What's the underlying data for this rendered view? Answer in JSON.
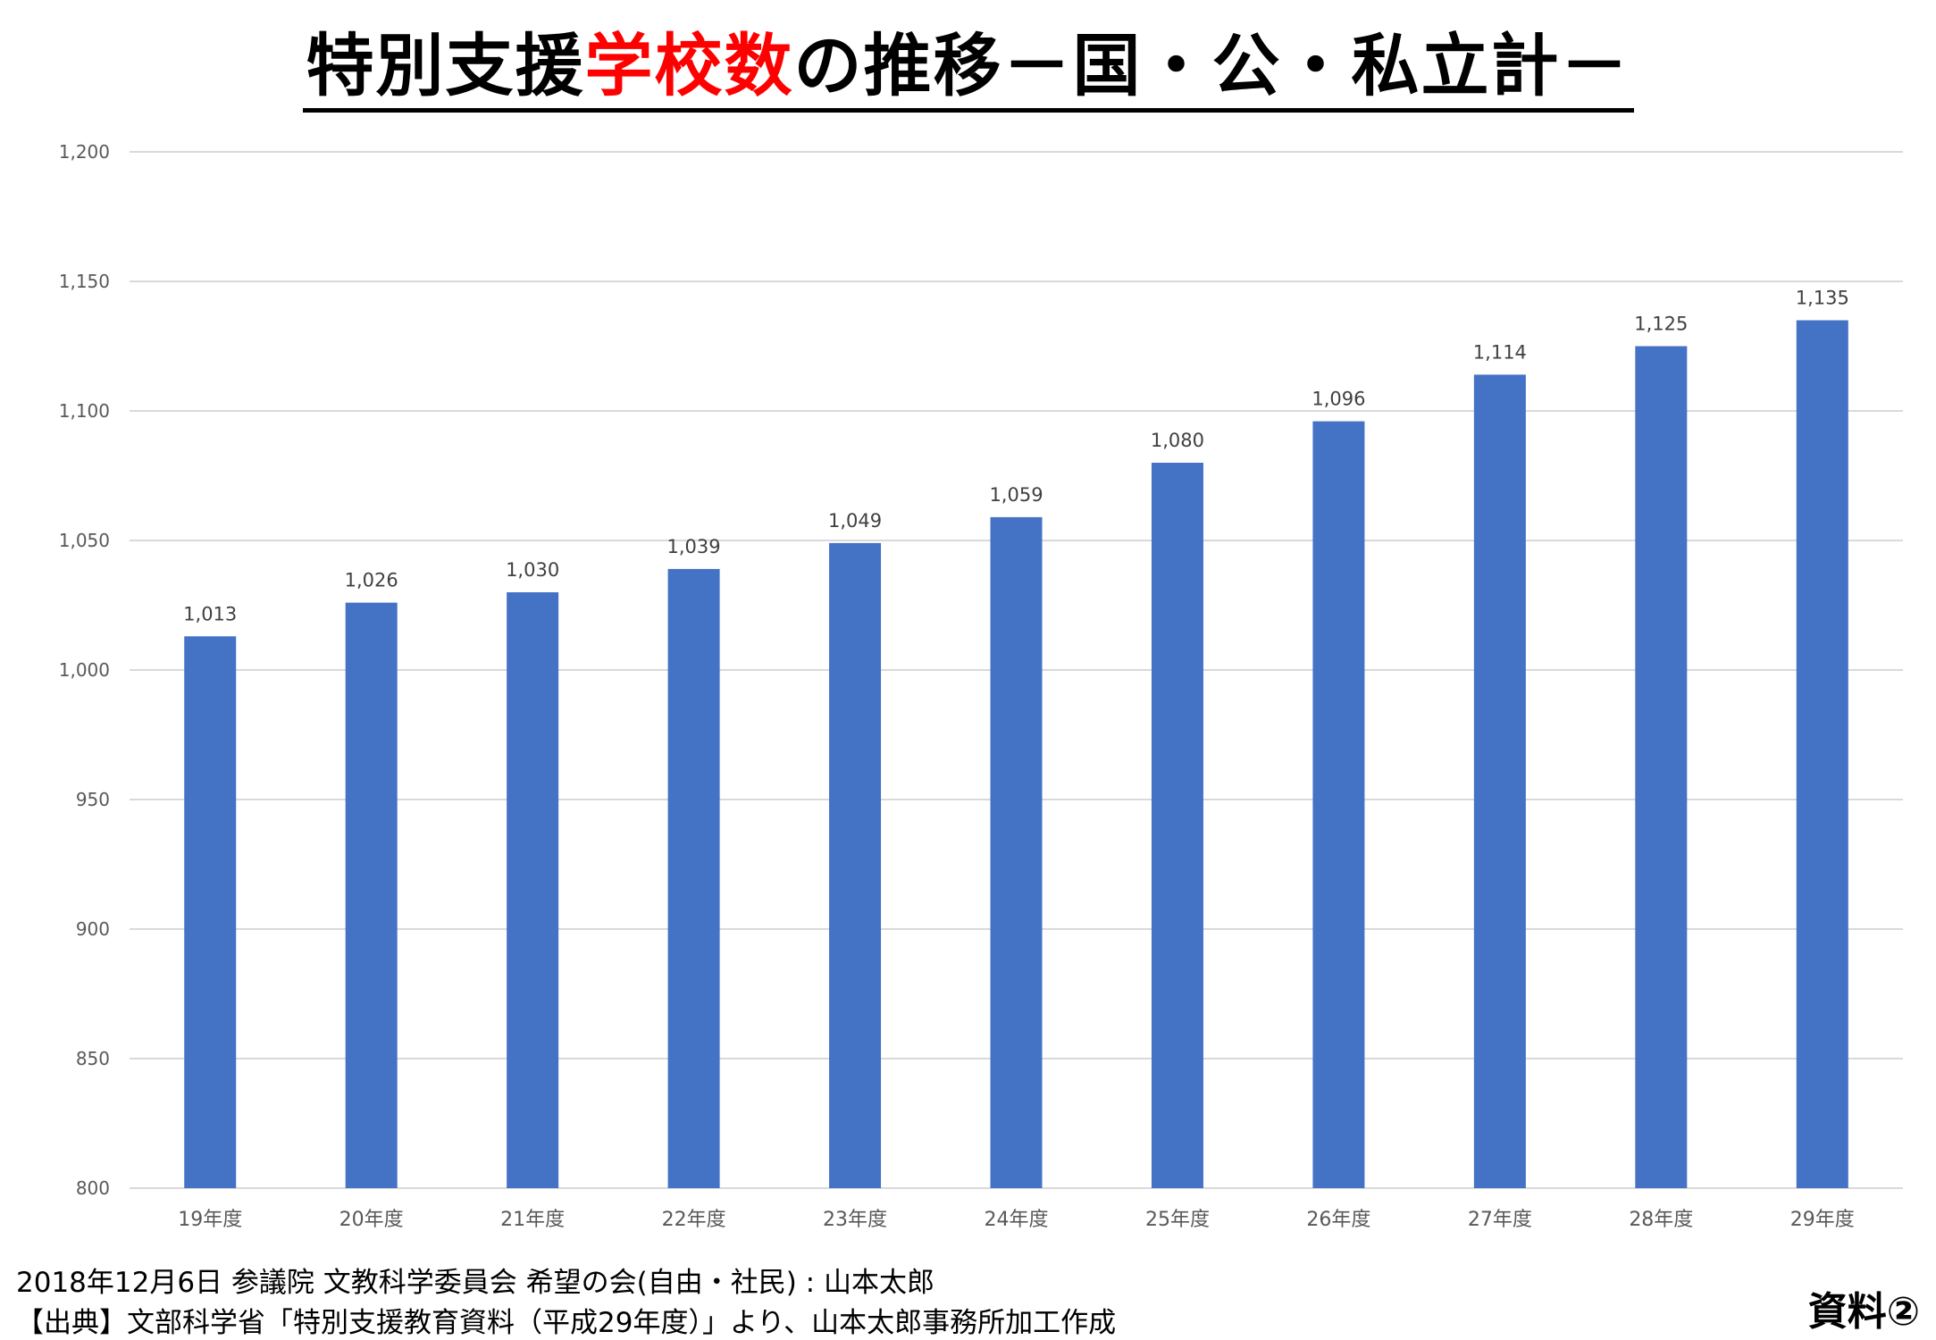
{
  "title": {
    "part1": "特別支援",
    "part2": "学校数",
    "part3": "の推移－国・公・私立計－"
  },
  "colors": {
    "bar": "#4472c4",
    "title_highlight": "#ff0000",
    "grid": "#d9d9d9",
    "axis_text": "#595959"
  },
  "chart_data": {
    "type": "bar",
    "categories": [
      "19年度",
      "20年度",
      "21年度",
      "22年度",
      "23年度",
      "24年度",
      "25年度",
      "26年度",
      "27年度",
      "28年度",
      "29年度"
    ],
    "values": [
      1013,
      1026,
      1030,
      1039,
      1049,
      1059,
      1080,
      1096,
      1114,
      1125,
      1135
    ],
    "value_labels": [
      "1,013",
      "1,026",
      "1,030",
      "1,039",
      "1,049",
      "1,059",
      "1,080",
      "1,096",
      "1,114",
      "1,125",
      "1,135"
    ],
    "ylim": [
      800,
      1200
    ],
    "yticks": [
      800,
      850,
      900,
      950,
      1000,
      1050,
      1100,
      1150,
      1200
    ],
    "ytick_labels": [
      "800",
      "850",
      "900",
      "950",
      "1,000",
      "1,050",
      "1,100",
      "1,150",
      "1,200"
    ],
    "grid": true,
    "legend": "none"
  },
  "footer": {
    "line1": "2018年12月6日 参議院 文教科学委員会 希望の会(自由・社民) : 山本太郎",
    "line2": "【出典】文部科学省「特別支援教育資料（平成29年度）」より、山本太郎事務所加工作成"
  },
  "badge": "資料②"
}
